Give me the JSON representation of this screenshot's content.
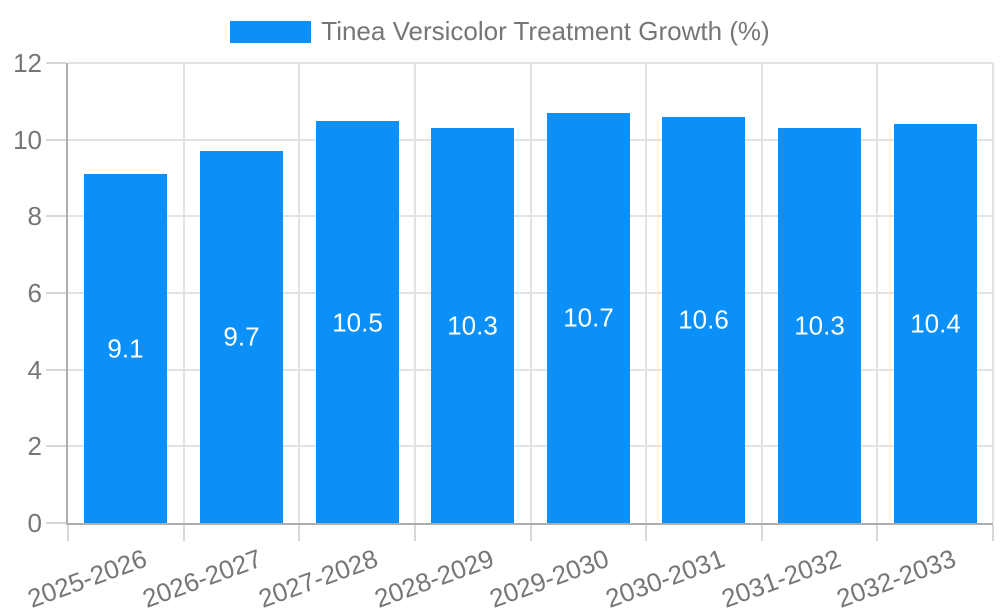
{
  "legend": {
    "label": "Tinea Versicolor Treatment Growth (%)"
  },
  "chart_data": {
    "type": "bar",
    "title": "",
    "categories": [
      "2025-2026",
      "2026-2027",
      "2027-2028",
      "2028-2029",
      "2029-2030",
      "2030-2031",
      "2031-2032",
      "2032-2033"
    ],
    "series": [
      {
        "name": "Tinea Versicolor Treatment Growth (%)",
        "values": [
          9.1,
          9.7,
          10.5,
          10.3,
          10.7,
          10.6,
          10.3,
          10.4
        ]
      }
    ],
    "bar_labels": [
      "9.1",
      "9.7",
      "10.5",
      "10.3",
      "10.7",
      "10.6",
      "10.3",
      "10.4"
    ],
    "xlabel": "",
    "ylabel": "",
    "ylim": [
      0,
      12
    ],
    "yticks": [
      0,
      2,
      4,
      6,
      8,
      10,
      12
    ],
    "grid": true,
    "legend_position": "top-center",
    "bar_label_position": "inside-middle",
    "x_tick_label_rotation_deg": -20,
    "colors": {
      "bar": "#0a90f8",
      "bar_label": "#ffffff",
      "axis_line": "#adadad",
      "grid_line": "#e3e3e3",
      "tick_line": "#d7d7d7",
      "text": "#767676",
      "background": "#ffffff"
    }
  }
}
